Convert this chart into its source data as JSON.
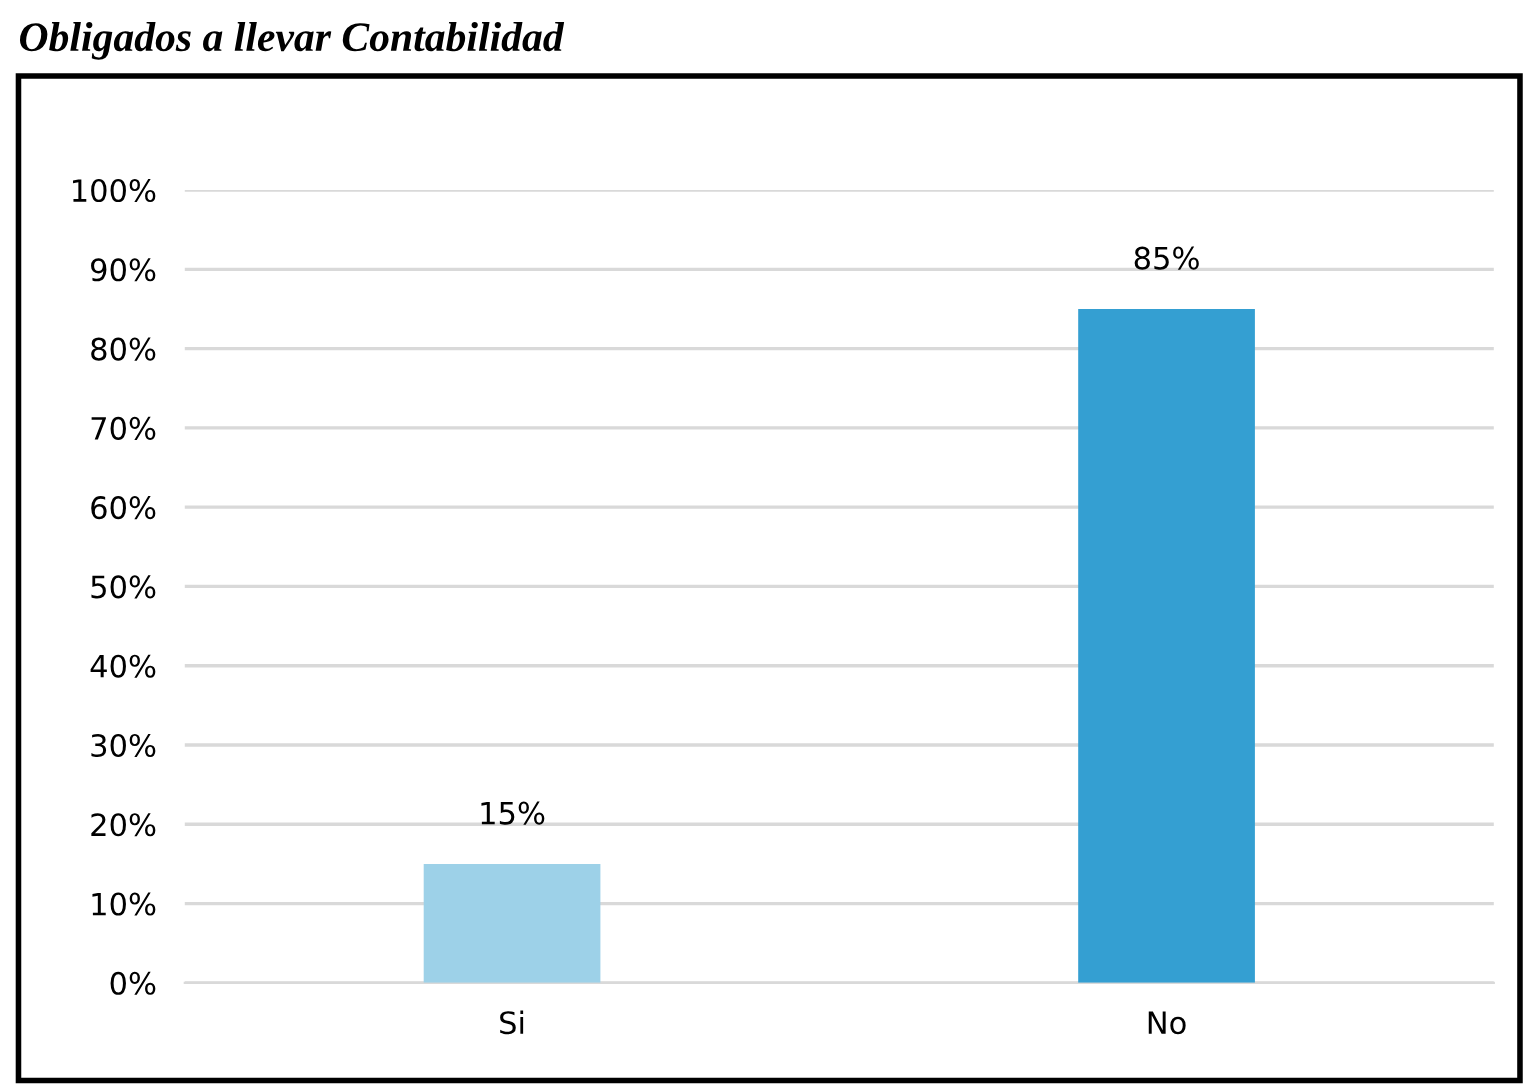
{
  "chart_data": {
    "type": "bar",
    "title": "Obligados a llevar Contabilidad",
    "categories": [
      "Si",
      "No"
    ],
    "values": [
      15,
      85
    ],
    "colors": [
      "#9dd1e8",
      "#349fd2"
    ],
    "value_labels": [
      "15%",
      "85%"
    ],
    "ylim": [
      0,
      100
    ],
    "yticks": [
      {
        "value": 0,
        "label": "0%"
      },
      {
        "value": 10,
        "label": "10%"
      },
      {
        "value": 20,
        "label": "20%"
      },
      {
        "value": 30,
        "label": "30%"
      },
      {
        "value": 40,
        "label": "40%"
      },
      {
        "value": 50,
        "label": "50%"
      },
      {
        "value": 60,
        "label": "60%"
      },
      {
        "value": 70,
        "label": "70%"
      },
      {
        "value": 80,
        "label": "80%"
      },
      {
        "value": 90,
        "label": "90%"
      },
      {
        "value": 100,
        "label": "100%"
      }
    ],
    "grid": "y",
    "legend": false
  }
}
